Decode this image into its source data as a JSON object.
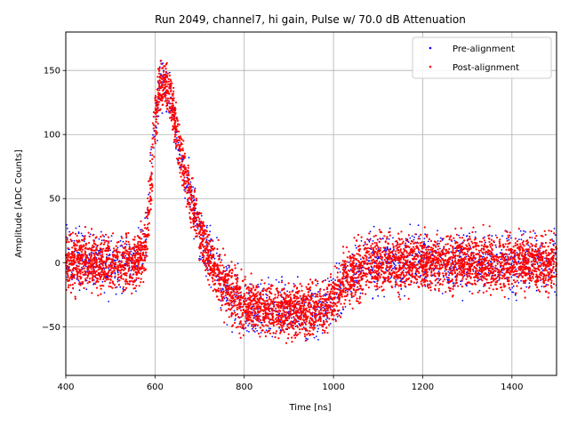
{
  "chart_data": {
    "type": "scatter",
    "title": "Run 2049, channel7, hi gain, Pulse w/ 70.0 dB Attenuation",
    "xlabel": "Time [ns]",
    "ylabel": "Amplitude [ADC Counts]",
    "xlim": [
      400,
      1500
    ],
    "ylim": [
      -88,
      180
    ],
    "xticks": [
      400,
      600,
      800,
      1000,
      1200,
      1400
    ],
    "yticks": [
      -50,
      0,
      50,
      100,
      150
    ],
    "grid": true,
    "legend_position": "top-right",
    "series": [
      {
        "name": "Pre-alignment",
        "color": "#0000ff",
        "marker": "dot",
        "x": [
          400,
          560,
          580,
          590,
          600,
          610,
          620,
          630,
          640,
          660,
          680,
          700,
          720,
          750,
          780,
          800,
          850,
          900,
          950,
          980,
          1000,
          1020,
          1050,
          1080,
          1100,
          1200,
          1300,
          1400,
          1500
        ],
        "y_center": [
          0,
          0,
          15,
          60,
          110,
          140,
          140,
          135,
          120,
          80,
          50,
          25,
          5,
          -15,
          -30,
          -35,
          -40,
          -40,
          -40,
          -38,
          -30,
          -20,
          -8,
          0,
          0,
          0,
          0,
          0,
          0
        ],
        "y_upper": [
          28,
          28,
          45,
          90,
          140,
          160,
          165,
          160,
          145,
          105,
          75,
          50,
          30,
          12,
          0,
          -5,
          -10,
          -12,
          -12,
          -10,
          -2,
          10,
          22,
          28,
          28,
          28,
          28,
          28,
          28
        ],
        "y_lower": [
          -28,
          -28,
          -15,
          30,
          80,
          115,
          115,
          110,
          95,
          55,
          25,
          0,
          -20,
          -42,
          -55,
          -60,
          -62,
          -62,
          -62,
          -60,
          -52,
          -45,
          -35,
          -28,
          -28,
          -28,
          -28,
          -28,
          -28
        ]
      },
      {
        "name": "Post-alignment",
        "color": "#ff0000",
        "marker": "dot",
        "x": [
          400,
          560,
          580,
          590,
          600,
          610,
          620,
          630,
          640,
          660,
          680,
          700,
          720,
          750,
          780,
          800,
          850,
          900,
          950,
          980,
          1000,
          1020,
          1050,
          1080,
          1100,
          1200,
          1300,
          1400,
          1500
        ],
        "y_center": [
          0,
          0,
          15,
          60,
          110,
          140,
          140,
          135,
          120,
          80,
          50,
          25,
          5,
          -15,
          -30,
          -35,
          -40,
          -40,
          -40,
          -38,
          -30,
          -20,
          -8,
          0,
          0,
          0,
          0,
          0,
          0
        ],
        "y_upper": [
          25,
          25,
          42,
          88,
          138,
          158,
          160,
          156,
          142,
          102,
          72,
          48,
          28,
          10,
          -2,
          -8,
          -12,
          -14,
          -14,
          -12,
          -4,
          8,
          20,
          25,
          25,
          25,
          25,
          25,
          25
        ],
        "y_lower": [
          -25,
          -25,
          -12,
          32,
          82,
          118,
          118,
          112,
          98,
          58,
          28,
          2,
          -18,
          -40,
          -52,
          -57,
          -60,
          -60,
          -60,
          -58,
          -50,
          -42,
          -32,
          -25,
          -25,
          -25,
          -25,
          -25,
          -25
        ]
      }
    ]
  }
}
